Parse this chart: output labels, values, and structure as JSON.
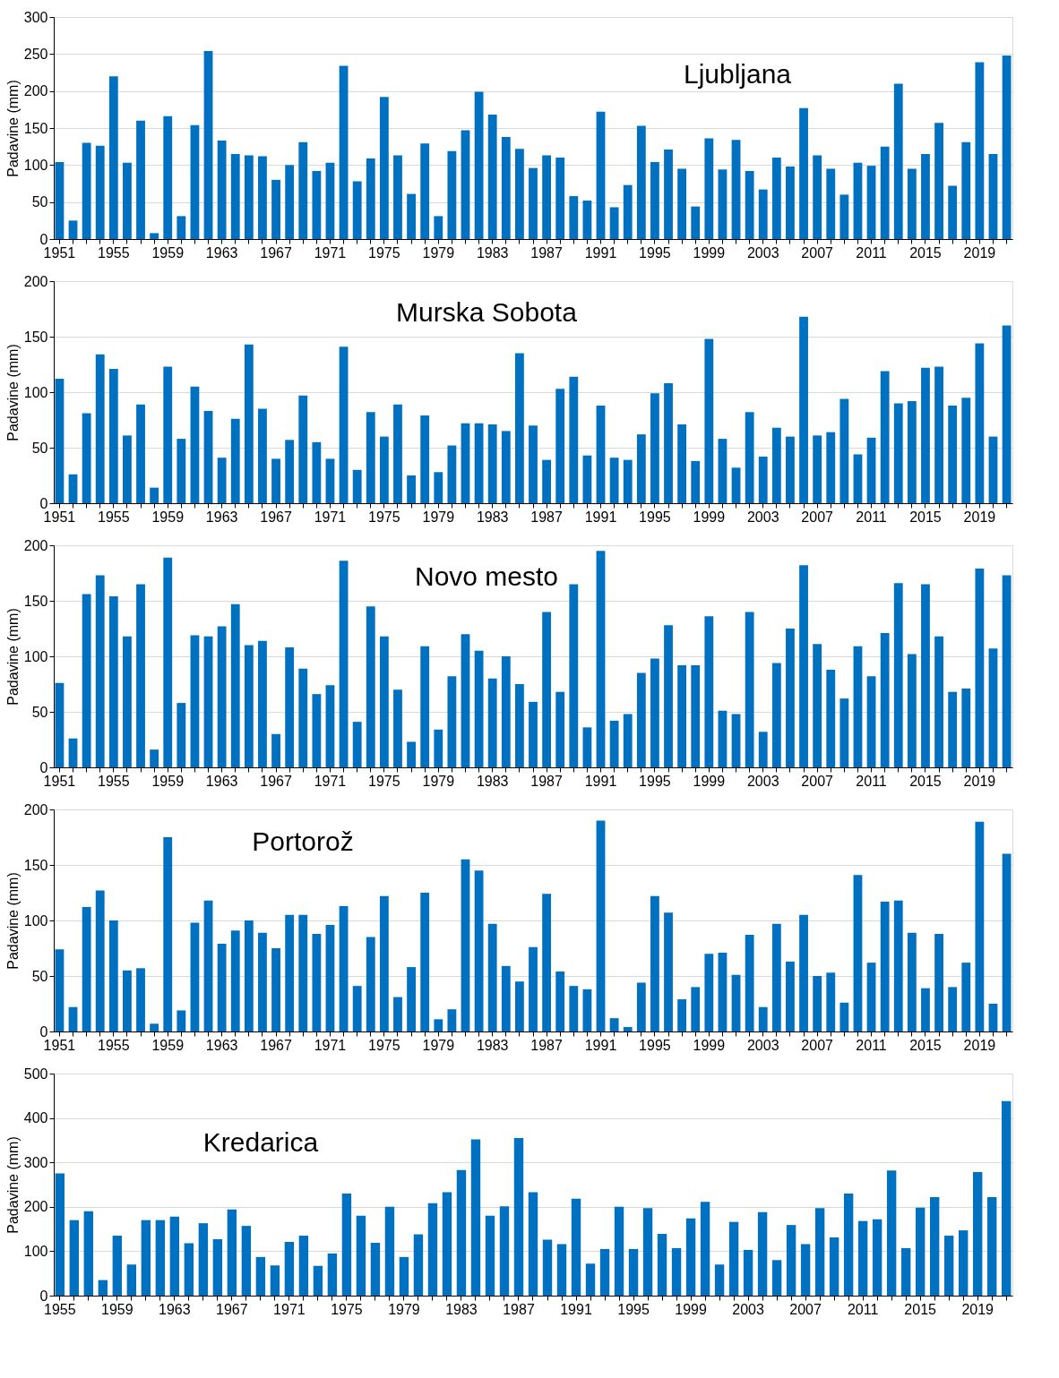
{
  "chart_data": [
    {
      "type": "bar",
      "title": "Ljubljana",
      "ylabel": "Padavine (mm)",
      "color": "#0070c0",
      "ylim": [
        0,
        300
      ],
      "yticks": [
        0,
        50,
        100,
        150,
        200,
        250,
        300
      ],
      "grid": "y",
      "categories": [
        "1951",
        null,
        null,
        null,
        "1955",
        null,
        null,
        null,
        "1959",
        null,
        null,
        null,
        "1963",
        null,
        null,
        null,
        "1967",
        null,
        null,
        null,
        "1971",
        null,
        null,
        null,
        "1975",
        null,
        null,
        null,
        "1979",
        null,
        null,
        null,
        "1983",
        null,
        null,
        null,
        "1987",
        null,
        null,
        null,
        "1991",
        null,
        null,
        null,
        "1995",
        null,
        null,
        null,
        "1999",
        null,
        null,
        null,
        "2003",
        null,
        null,
        null,
        "2007",
        null,
        null,
        null,
        "2011",
        null,
        null,
        null,
        "2015",
        null,
        null,
        null,
        "2019",
        null,
        null
      ],
      "values": [
        104,
        25,
        130,
        126,
        220,
        103,
        160,
        8,
        166,
        31,
        154,
        254,
        133,
        115,
        113,
        112,
        80,
        100,
        131,
        92,
        103,
        234,
        78,
        109,
        192,
        113,
        61,
        129,
        31,
        119,
        147,
        199,
        168,
        138,
        122,
        96,
        113,
        110,
        58,
        52,
        172,
        43,
        73,
        153,
        104,
        121,
        95,
        44,
        136,
        94,
        134,
        92,
        67,
        110,
        98,
        177,
        113,
        95,
        60,
        103,
        99,
        125,
        210,
        95,
        115,
        157,
        72,
        131,
        239,
        115,
        248
      ]
    },
    {
      "type": "bar",
      "title": "Murska Sobota",
      "ylabel": "Padavine (mm)",
      "color": "#0070c0",
      "ylim": [
        0,
        200
      ],
      "yticks": [
        0,
        50,
        100,
        150,
        200
      ],
      "grid": "y",
      "categories": [
        "1951",
        null,
        null,
        null,
        "1955",
        null,
        null,
        null,
        "1959",
        null,
        null,
        null,
        "1963",
        null,
        null,
        null,
        "1967",
        null,
        null,
        null,
        "1971",
        null,
        null,
        null,
        "1975",
        null,
        null,
        null,
        "1979",
        null,
        null,
        null,
        "1983",
        null,
        null,
        null,
        "1987",
        null,
        null,
        null,
        "1991",
        null,
        null,
        null,
        "1995",
        null,
        null,
        null,
        "1999",
        null,
        null,
        null,
        "2003",
        null,
        null,
        null,
        "2007",
        null,
        null,
        null,
        "2011",
        null,
        null,
        null,
        "2015",
        null,
        null,
        null,
        "2019",
        null,
        null
      ],
      "values": [
        112,
        26,
        81,
        134,
        121,
        61,
        89,
        14,
        123,
        58,
        105,
        83,
        41,
        76,
        143,
        85,
        40,
        57,
        97,
        55,
        40,
        141,
        30,
        82,
        60,
        89,
        25,
        79,
        28,
        52,
        72,
        72,
        71,
        65,
        135,
        70,
        39,
        103,
        114,
        43,
        88,
        41,
        39,
        62,
        99,
        108,
        71,
        38,
        148,
        58,
        32,
        82,
        42,
        68,
        60,
        168,
        61,
        64,
        94,
        44,
        59,
        119,
        90,
        92,
        122,
        123,
        88,
        95,
        144,
        60,
        160
      ]
    },
    {
      "type": "bar",
      "title": "Novo mesto",
      "ylabel": "Padavine (mm)",
      "color": "#0070c0",
      "ylim": [
        0,
        200
      ],
      "yticks": [
        0,
        50,
        100,
        150,
        200
      ],
      "grid": "y",
      "categories": [
        "1951",
        null,
        null,
        null,
        "1955",
        null,
        null,
        null,
        "1959",
        null,
        null,
        null,
        "1963",
        null,
        null,
        null,
        "1967",
        null,
        null,
        null,
        "1971",
        null,
        null,
        null,
        "1975",
        null,
        null,
        null,
        "1979",
        null,
        null,
        null,
        "1983",
        null,
        null,
        null,
        "1987",
        null,
        null,
        null,
        "1991",
        null,
        null,
        null,
        "1995",
        null,
        null,
        null,
        "1999",
        null,
        null,
        null,
        "2003",
        null,
        null,
        null,
        "2007",
        null,
        null,
        null,
        "2011",
        null,
        null,
        null,
        "2015",
        null,
        null,
        null,
        "2019",
        null,
        null
      ],
      "values": [
        76,
        26,
        156,
        173,
        154,
        118,
        165,
        16,
        189,
        58,
        119,
        118,
        127,
        147,
        110,
        114,
        30,
        108,
        89,
        66,
        74,
        186,
        41,
        145,
        118,
        70,
        23,
        109,
        34,
        82,
        120,
        105,
        80,
        100,
        75,
        59,
        140,
        68,
        165,
        36,
        195,
        42,
        48,
        85,
        98,
        128,
        92,
        92,
        136,
        51,
        48,
        140,
        32,
        94,
        125,
        182,
        111,
        88,
        62,
        109,
        82,
        121,
        166,
        102,
        165,
        118,
        68,
        71,
        179,
        107,
        173
      ]
    },
    {
      "type": "bar",
      "title": "Portorož",
      "ylabel": "Padavine (mm)",
      "color": "#0070c0",
      "ylim": [
        0,
        200
      ],
      "yticks": [
        0,
        50,
        100,
        150,
        200
      ],
      "grid": "y",
      "categories": [
        "1951",
        null,
        null,
        null,
        "1955",
        null,
        null,
        null,
        "1959",
        null,
        null,
        null,
        "1963",
        null,
        null,
        null,
        "1967",
        null,
        null,
        null,
        "1971",
        null,
        null,
        null,
        "1975",
        null,
        null,
        null,
        "1979",
        null,
        null,
        null,
        "1983",
        null,
        null,
        null,
        "1987",
        null,
        null,
        null,
        "1991",
        null,
        null,
        null,
        "1995",
        null,
        null,
        null,
        "1999",
        null,
        null,
        null,
        "2003",
        null,
        null,
        null,
        "2007",
        null,
        null,
        null,
        "2011",
        null,
        null,
        null,
        "2015",
        null,
        null,
        null,
        "2019",
        null,
        null
      ],
      "values": [
        74,
        22,
        112,
        127,
        100,
        55,
        57,
        7,
        175,
        19,
        98,
        118,
        79,
        91,
        100,
        89,
        75,
        105,
        105,
        88,
        96,
        113,
        41,
        85,
        122,
        31,
        58,
        125,
        11,
        20,
        155,
        145,
        97,
        59,
        45,
        76,
        124,
        54,
        41,
        38,
        190,
        12,
        4,
        44,
        122,
        107,
        29,
        40,
        70,
        71,
        51,
        87,
        22,
        97,
        63,
        105,
        50,
        53,
        26,
        141,
        62,
        117,
        118,
        89,
        39,
        88,
        40,
        62,
        189,
        25,
        160
      ]
    },
    {
      "type": "bar",
      "title": "Kredarica",
      "ylabel": "Padavine (mm)",
      "color": "#0070c0",
      "ylim": [
        0,
        500
      ],
      "yticks": [
        0,
        100,
        200,
        300,
        400,
        500
      ],
      "grid": "y",
      "categories": [
        "1955",
        null,
        null,
        null,
        "1959",
        null,
        null,
        null,
        "1963",
        null,
        null,
        null,
        "1967",
        null,
        null,
        null,
        "1971",
        null,
        null,
        null,
        "1975",
        null,
        null,
        null,
        "1979",
        null,
        null,
        null,
        "1983",
        null,
        null,
        null,
        "1987",
        null,
        null,
        null,
        "1991",
        null,
        null,
        null,
        "1995",
        null,
        null,
        null,
        "1999",
        null,
        null,
        null,
        "2003",
        null,
        null,
        null,
        "2007",
        null,
        null,
        null,
        "2011",
        null,
        null,
        null,
        "2015",
        null,
        null,
        null,
        "2019",
        null,
        null
      ],
      "values": [
        275,
        170,
        190,
        35,
        135,
        70,
        170,
        170,
        178,
        118,
        163,
        127,
        194,
        157,
        87,
        68,
        121,
        135,
        67,
        95,
        230,
        180,
        119,
        200,
        87,
        138,
        208,
        233,
        283,
        352,
        180,
        201,
        355,
        233,
        126,
        116,
        218,
        72,
        105,
        200,
        105,
        197,
        139,
        107,
        174,
        211,
        70,
        166,
        103,
        188,
        80,
        159,
        116,
        197,
        131,
        230,
        168,
        172,
        282,
        107,
        198,
        222,
        135,
        147,
        278,
        222,
        438
      ]
    }
  ]
}
